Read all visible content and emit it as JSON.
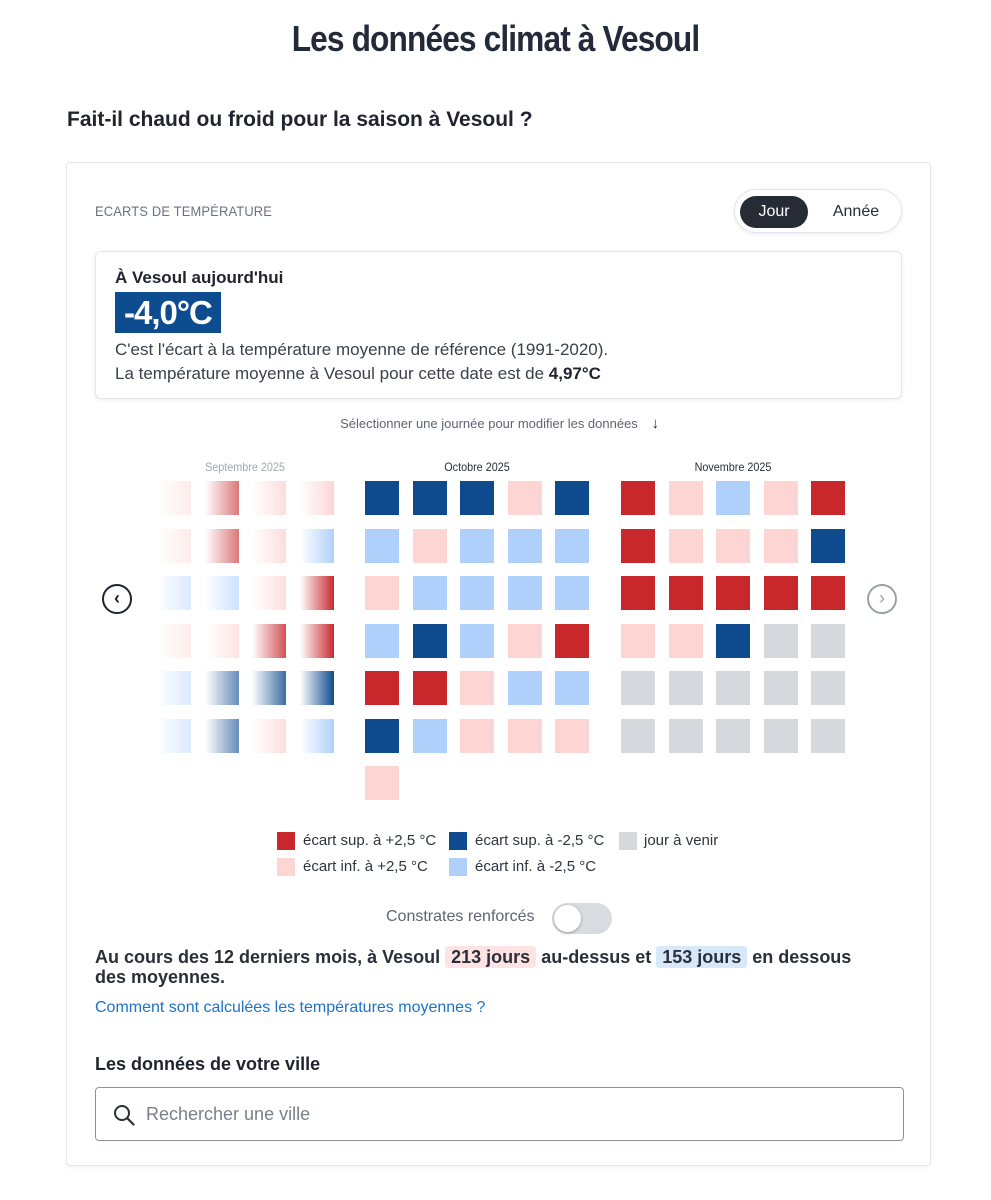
{
  "page": {
    "title": "Les données climat à Vesoul",
    "section_title": "Fait-il chaud ou froid pour la saison à Vesoul ?"
  },
  "card": {
    "label": "ECARTS DE TEMPÉRATURE",
    "toggle": {
      "day": "Jour",
      "year": "Année",
      "selected": "Jour"
    }
  },
  "today": {
    "title": "À Vesoul aujourd'hui",
    "value": "-4,0°C",
    "line1": "C'est l'écart à la température moyenne de référence (1991-2020).",
    "line2_prefix": "La température moyenne à Vesoul pour cette date est de ",
    "line2_value": "4,97°C"
  },
  "calendar": {
    "hint": "Sélectionner une journée pour modifier les données",
    "hint_arrow": "↓",
    "colors": {
      "hot_strong": "#c8282c",
      "hot_weak": "#fdd5d3",
      "cold_strong": "#0d4a8e",
      "cold_weak": "#aed0fb",
      "future": "#d5d8dc"
    },
    "months": [
      {
        "label": "Septembre 2025",
        "faded": true,
        "columns": [
          [
            "hot_weak",
            "hot_weak",
            "cold_weak",
            "hot_weak",
            "cold_weak",
            "cold_weak"
          ],
          [
            "hot_strong",
            "hot_strong",
            "cold_weak",
            "hot_weak",
            "cold_strong",
            "cold_strong"
          ],
          [
            "hot_weak",
            "hot_weak",
            "hot_weak",
            "hot_strong",
            "cold_strong",
            "hot_weak"
          ],
          [
            "hot_weak",
            "cold_weak",
            "hot_strong",
            "hot_strong",
            "cold_strong",
            "cold_weak"
          ]
        ]
      },
      {
        "label": "Octobre 2025",
        "faded": false,
        "columns": [
          [
            "cold_strong",
            "cold_weak",
            "hot_weak",
            "cold_weak",
            "hot_strong",
            "cold_strong",
            "hot_weak"
          ],
          [
            "cold_strong",
            "hot_weak",
            "cold_weak",
            "cold_strong",
            "hot_strong",
            "cold_weak"
          ],
          [
            "cold_strong",
            "cold_weak",
            "cold_weak",
            "cold_weak",
            "hot_weak",
            "hot_weak"
          ],
          [
            "hot_weak",
            "cold_weak",
            "cold_weak",
            "hot_weak",
            "cold_weak",
            "hot_weak"
          ],
          [
            "cold_strong",
            "cold_weak",
            "cold_weak",
            "hot_strong",
            "cold_weak",
            "hot_weak"
          ]
        ]
      },
      {
        "label": "Novembre 2025",
        "faded": false,
        "columns": [
          [
            "hot_strong",
            "hot_strong",
            "hot_strong",
            "hot_weak",
            "future",
            "future"
          ],
          [
            "hot_weak",
            "hot_weak",
            "hot_strong",
            "hot_weak",
            "future",
            "future"
          ],
          [
            "cold_weak",
            "hot_weak",
            "hot_strong",
            "cold_strong",
            "future",
            "future"
          ],
          [
            "hot_weak",
            "hot_weak",
            "hot_strong",
            "future",
            "future",
            "future"
          ],
          [
            "hot_strong",
            "cold_strong",
            "hot_strong",
            "future",
            "future",
            "future"
          ]
        ]
      }
    ],
    "prev_icon": "chevron-left-icon",
    "next_icon": "chevron-right-icon"
  },
  "legend": {
    "hot_strong": "écart sup. à +2,5 °C",
    "cold_strong": "écart sup. à -2,5 °C",
    "future": "jour à venir",
    "hot_weak": "écart inf. à +2,5 °C",
    "cold_weak": "écart inf. à -2,5 °C"
  },
  "contrast": {
    "label": "Constrates renforcés",
    "enabled": false
  },
  "summary": {
    "prefix": "Au cours des 12 derniers mois, à Vesoul ",
    "hot_days": "213 jours",
    "middle": " au-dessus et ",
    "cold_days": "153 jours",
    "suffix": " en dessous des moyennes."
  },
  "method_link": "Comment sont calculées les températures moyennes ?",
  "city_search": {
    "title": "Les données de votre ville",
    "placeholder": "Rechercher une ville",
    "value": ""
  }
}
